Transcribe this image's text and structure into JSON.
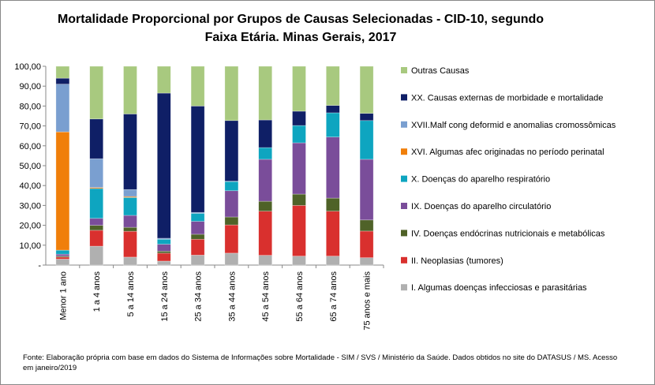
{
  "chart_data": {
    "type": "bar",
    "stacked": true,
    "title": "Mortalidade Proporcional por Grupos de Causas Selecionadas - CID-10, segundo Faixa Etária. Minas Gerais, 2017",
    "categories": [
      "Menor 1 ano",
      "1 a 4 anos",
      "5 a 14 anos",
      "15 a 24 anos",
      "25 a 34 anos",
      "35 a 44 anos",
      "45 a 54 anos",
      "55 a 64 anos",
      "65 a 74 anos",
      "75 anos e mais"
    ],
    "ylim": [
      0,
      100
    ],
    "yticks": [
      "-",
      "10,00",
      "20,00",
      "30,00",
      "40,00",
      "50,00",
      "60,00",
      "70,00",
      "80,00",
      "90,00",
      "100,00"
    ],
    "legend_position": "right",
    "grid": false,
    "series": [
      {
        "name": "I.   Algumas doenças infecciosas e parasitárias",
        "color": "#b0b0b0",
        "values": [
          3,
          9.5,
          4,
          2,
          5,
          6,
          4.9,
          4.5,
          4.5,
          3.7
        ]
      },
      {
        "name": "II.  Neoplasias (tumores)",
        "color": "#d9302e",
        "values": [
          1,
          8,
          13,
          4,
          8,
          14.2,
          22.2,
          25.5,
          22.6,
          13.4
        ]
      },
      {
        "name": "IV.  Doenças endócrinas nutricionais e metabólicas",
        "color": "#4f6228",
        "values": [
          0.5,
          2.5,
          2,
          1,
          2.5,
          4,
          5,
          5.7,
          6.6,
          5.6
        ]
      },
      {
        "name": "IX.  Doenças do aparelho circulatório",
        "color": "#7a4d9a",
        "values": [
          1,
          3.5,
          6,
          3.5,
          6.5,
          13.2,
          21.1,
          25.8,
          30.7,
          30.5
        ]
      },
      {
        "name": "X.   Doenças do aparelho respiratório",
        "color": "#0ea5c0",
        "values": [
          2,
          15,
          9,
          2.5,
          4,
          4.6,
          5.9,
          8.7,
          12.2,
          19.5
        ]
      },
      {
        "name": "XVI.  Algumas afec originadas no período perinatal",
        "color": "#f07f0a",
        "values": [
          59.5,
          0.5,
          0.5,
          0,
          0,
          0,
          0,
          0,
          0,
          0
        ]
      },
      {
        "name": "XVII.Malf cong deformid e anomalias cromossômicas",
        "color": "#7a9fd0",
        "values": [
          24,
          14.5,
          3.5,
          0.5,
          0.5,
          0.2,
          0,
          0,
          0,
          0
        ]
      },
      {
        "name": "XX.  Causas externas de morbidade e mortalidade",
        "color": "#0f1f66",
        "values": [
          3,
          20,
          38,
          73,
          53.5,
          30.5,
          13.9,
          7.2,
          3.7,
          3.6
        ]
      },
      {
        "name": "Outras Causas",
        "color": "#a8c97f",
        "values": [
          6,
          26.5,
          24,
          13.5,
          20,
          27.3,
          27,
          22.6,
          19.7,
          23.7
        ]
      }
    ]
  },
  "source": "Fonte: Elaboração própria com base em dados do  Sistema de Informações sobre Mortalidade - SIM / SVS / Ministério da Saúde. Dados obtidos no site do DATASUS / MS. Acesso em janeiro/2019"
}
